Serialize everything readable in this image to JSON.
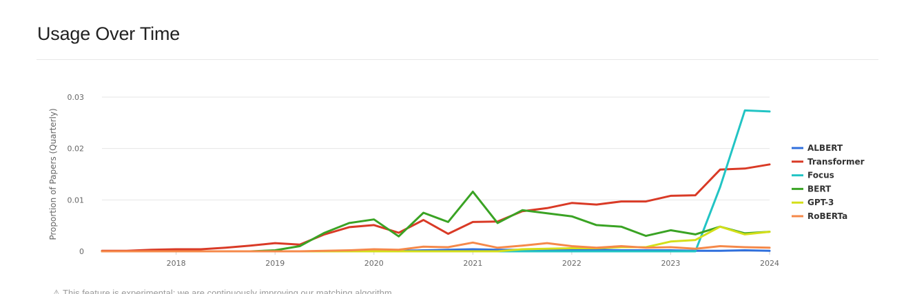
{
  "page": {
    "title": "Usage Over Time",
    "footnote": "⚠ This feature is experimental; we are continuously improving our matching algorithm."
  },
  "chart_data": {
    "type": "line",
    "title": "",
    "xlabel": "",
    "ylabel": "Proportion of Papers (Quarterly)",
    "xlim": [
      2017.25,
      2024.0
    ],
    "ylim": [
      0,
      0.03
    ],
    "x_ticks": [
      2018,
      2019,
      2020,
      2021,
      2022,
      2023,
      2024
    ],
    "x_tick_labels": [
      "2018",
      "2019",
      "2020",
      "2021",
      "2022",
      "2023",
      "2024"
    ],
    "y_ticks": [
      0,
      0.01,
      0.02,
      0.03
    ],
    "y_tick_labels": [
      "0",
      "0.01",
      "0.02",
      "0.03"
    ],
    "grid": true,
    "legend_position": "right",
    "x": [
      2017.25,
      2017.5,
      2017.75,
      2018.0,
      2018.25,
      2018.5,
      2018.75,
      2019.0,
      2019.25,
      2019.5,
      2019.75,
      2020.0,
      2020.25,
      2020.5,
      2020.75,
      2021.0,
      2021.25,
      2021.5,
      2021.75,
      2022.0,
      2022.25,
      2022.5,
      2022.75,
      2023.0,
      2023.25,
      2023.5,
      2023.75,
      2024.0
    ],
    "series": [
      {
        "name": "ALBERT",
        "color": "#2f6fdd",
        "values": [
          0,
          0,
          0,
          0,
          0,
          0,
          0,
          0,
          0,
          0,
          0,
          5e-05,
          0.0001,
          0.0002,
          0.0003,
          0.0004,
          0.0003,
          0.0003,
          0.0003,
          0.0003,
          0.0003,
          0.0002,
          0.0002,
          0.0002,
          0.0001,
          0.0001,
          0.0002,
          0.0001
        ]
      },
      {
        "name": "Transformer",
        "color": "#d93a26",
        "values": [
          0.0001,
          0.0001,
          0.0003,
          0.0004,
          0.0004,
          0.0007,
          0.0011,
          0.0016,
          0.0013,
          0.0033,
          0.0047,
          0.0051,
          0.0036,
          0.0061,
          0.0034,
          0.0057,
          0.0058,
          0.0078,
          0.0084,
          0.0094,
          0.0091,
          0.0097,
          0.0097,
          0.0108,
          0.0109,
          0.0159,
          0.0161,
          0.0169
        ]
      },
      {
        "name": "Focus",
        "color": "#22c4c4",
        "values": [
          0,
          0,
          0,
          0,
          0,
          0,
          0,
          0,
          0,
          0,
          0,
          0,
          0,
          0,
          0,
          0,
          0,
          0,
          0,
          0,
          0,
          0,
          0,
          0,
          0,
          0.0125,
          0.0274,
          0.0272
        ]
      },
      {
        "name": "BERT",
        "color": "#3aa324",
        "values": [
          0,
          0,
          0,
          0,
          0,
          0,
          0,
          0.0002,
          0.001,
          0.0036,
          0.0055,
          0.0062,
          0.0029,
          0.0075,
          0.0057,
          0.0116,
          0.0055,
          0.008,
          0.0074,
          0.0068,
          0.0051,
          0.0048,
          0.003,
          0.0041,
          0.0033,
          0.0048,
          0.0035,
          0.0038
        ]
      },
      {
        "name": "GPT-3",
        "color": "#d4df1a",
        "values": [
          0,
          0,
          0,
          0,
          0,
          0,
          0,
          0,
          0,
          0,
          0,
          0,
          0,
          0,
          0,
          0,
          0,
          0.0004,
          0.0005,
          0.0006,
          0.0006,
          0.0008,
          0.0008,
          0.0019,
          0.0022,
          0.0048,
          0.0033,
          0.0038
        ]
      },
      {
        "name": "RoBERTa",
        "color": "#f5894a",
        "values": [
          0,
          0,
          0,
          0,
          0,
          0,
          0,
          0,
          0,
          0.0001,
          0.0002,
          0.0004,
          0.0003,
          0.0009,
          0.0008,
          0.0017,
          0.0007,
          0.0011,
          0.0016,
          0.001,
          0.0007,
          0.001,
          0.0007,
          0.0008,
          0.0005,
          0.001,
          0.0008,
          0.0007
        ]
      }
    ]
  }
}
